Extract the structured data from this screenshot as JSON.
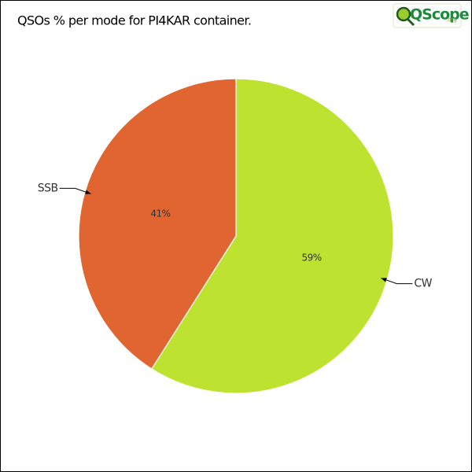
{
  "chart_data": {
    "type": "pie",
    "title": "QSOs % per mode for PI4KAR container.",
    "logo_text": "QScope",
    "logo_suffix": ".org",
    "categories": [
      "CW",
      "SSB"
    ],
    "values": [
      59,
      41
    ],
    "value_labels": [
      "59%",
      "41%"
    ],
    "colors": [
      "#bde22f",
      "#e06530"
    ]
  }
}
